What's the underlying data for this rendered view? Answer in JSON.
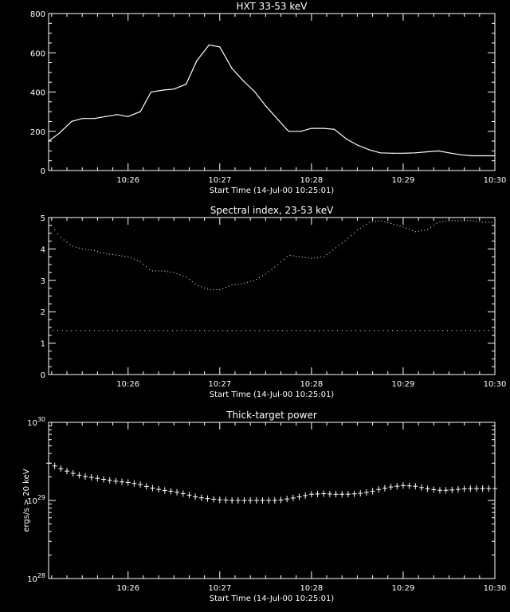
{
  "chart_data": [
    {
      "type": "line",
      "title": "HXT 33-53 keV",
      "xlabel": "Start Time (14-Jul-00 10:25:01)",
      "ylabel": "",
      "xlim": [
        "10:25:08",
        "10:30:00"
      ],
      "ylim": [
        0,
        800
      ],
      "y_ticks": [
        "0",
        "200",
        "400",
        "600",
        "800"
      ],
      "x_ticks": [
        "10:26",
        "10:27",
        "10:28",
        "10:29",
        "10:30"
      ],
      "series": [
        {
          "x": [
            "10:25:08",
            "10:25:15",
            "10:25:23",
            "10:25:30",
            "10:25:38",
            "10:25:45",
            "10:25:53",
            "10:26:00",
            "10:26:08",
            "10:26:15",
            "10:26:23",
            "10:26:30",
            "10:26:38",
            "10:26:45",
            "10:26:53",
            "10:27:00",
            "10:27:08",
            "10:27:15",
            "10:27:23",
            "10:27:30",
            "10:27:38",
            "10:27:45",
            "10:27:53",
            "10:28:00",
            "10:28:08",
            "10:28:15",
            "10:28:23",
            "10:28:30",
            "10:28:38",
            "10:28:45",
            "10:28:53",
            "10:29:00",
            "10:29:08",
            "10:29:15",
            "10:29:23",
            "10:29:30",
            "10:29:38",
            "10:29:45",
            "10:29:53",
            "10:30:00"
          ],
          "values": [
            150,
            190,
            250,
            265,
            265,
            275,
            285,
            275,
            300,
            400,
            410,
            415,
            440,
            560,
            640,
            630,
            520,
            460,
            400,
            330,
            260,
            200,
            200,
            215,
            215,
            210,
            160,
            130,
            105,
            90,
            88,
            88,
            90,
            95,
            100,
            90,
            80,
            75,
            75,
            75
          ]
        }
      ]
    },
    {
      "type": "scatter",
      "title": "Spectral index, 23-53 keV",
      "xlabel": "Start Time (14-Jul-00 10:25:01)",
      "ylabel": "",
      "xlim": [
        "10:25:08",
        "10:30:00"
      ],
      "ylim": [
        0,
        5
      ],
      "y_ticks": [
        "0",
        "1",
        "2",
        "3",
        "4",
        "5"
      ],
      "x_ticks": [
        "10:26",
        "10:27",
        "10:28",
        "10:29",
        "10:30"
      ],
      "series": [
        {
          "x": [
            "10:25:08",
            "10:25:15",
            "10:25:23",
            "10:25:30",
            "10:25:38",
            "10:25:45",
            "10:25:53",
            "10:26:00",
            "10:26:08",
            "10:26:15",
            "10:26:23",
            "10:26:30",
            "10:26:38",
            "10:26:45",
            "10:26:53",
            "10:27:00",
            "10:27:08",
            "10:27:15",
            "10:27:23",
            "10:27:30",
            "10:27:38",
            "10:27:45",
            "10:27:53",
            "10:28:00",
            "10:28:08",
            "10:28:15",
            "10:28:23",
            "10:28:30",
            "10:28:38",
            "10:28:45",
            "10:28:53",
            "10:29:00",
            "10:29:08",
            "10:29:15",
            "10:29:23",
            "10:29:30",
            "10:29:38",
            "10:29:45",
            "10:29:53",
            "10:30:00"
          ],
          "values": [
            4.9,
            4.4,
            4.1,
            4.0,
            3.95,
            3.85,
            3.8,
            3.75,
            3.6,
            3.3,
            3.3,
            3.25,
            3.1,
            2.85,
            2.7,
            2.7,
            2.85,
            2.9,
            3.0,
            3.2,
            3.5,
            3.8,
            3.75,
            3.7,
            3.75,
            4.0,
            4.3,
            4.6,
            4.85,
            4.9,
            4.8,
            4.7,
            4.55,
            4.6,
            4.85,
            4.9,
            4.9,
            4.9,
            4.85,
            4.85
          ]
        },
        {
          "x": [
            "10:25:08",
            "10:30:00"
          ],
          "values": [
            1.4,
            1.4
          ]
        }
      ]
    },
    {
      "type": "line",
      "title": "Thick-target power",
      "xlabel": "Start Time (14-Jul-00 10:25:01)",
      "ylabel": "ergs/s > 20 keV",
      "xlim": [
        "10:25:08",
        "10:30:00"
      ],
      "ylim": [
        1e+28,
        1e+30
      ],
      "y_scale": "log",
      "y_tick_base": "10",
      "y_ticks": [
        {
          "value": 1e+28,
          "exp": "28"
        },
        {
          "value": 1e+29,
          "exp": "29"
        },
        {
          "value": 1e+30,
          "exp": "30"
        }
      ],
      "x_ticks": [
        "10:26",
        "10:27",
        "10:28",
        "10:29",
        "10:30"
      ],
      "series": [
        {
          "x": [
            "10:25:08",
            "10:25:15",
            "10:25:23",
            "10:25:30",
            "10:25:38",
            "10:25:45",
            "10:25:53",
            "10:26:00",
            "10:26:08",
            "10:26:15",
            "10:26:23",
            "10:26:30",
            "10:26:38",
            "10:26:45",
            "10:26:53",
            "10:27:00",
            "10:27:08",
            "10:27:15",
            "10:27:23",
            "10:27:30",
            "10:27:38",
            "10:27:45",
            "10:27:53",
            "10:28:00",
            "10:28:08",
            "10:28:15",
            "10:28:23",
            "10:28:30",
            "10:28:38",
            "10:28:45",
            "10:28:53",
            "10:29:00",
            "10:29:08",
            "10:29:15",
            "10:29:23",
            "10:29:30",
            "10:29:38",
            "10:29:45",
            "10:29:53",
            "10:30:00"
          ],
          "values": [
            3e+29,
            2.6e+29,
            2.25e+29,
            2.05e+29,
            1.95e+29,
            1.85e+29,
            1.75e+29,
            1.7e+29,
            1.6e+29,
            1.45e+29,
            1.35e+29,
            1.3e+29,
            1.2e+29,
            1.1e+29,
            1.05e+29,
            1.02e+29,
            1e+29,
            1e+29,
            1e+29,
            1e+29,
            1e+29,
            1.05e+29,
            1.12e+29,
            1.2e+29,
            1.22e+29,
            1.2e+29,
            1.2e+29,
            1.22e+29,
            1.28e+29,
            1.4e+29,
            1.5e+29,
            1.55e+29,
            1.52e+29,
            1.42e+29,
            1.35e+29,
            1.35e+29,
            1.4e+29,
            1.42e+29,
            1.42e+29,
            1.42e+29
          ]
        }
      ]
    }
  ]
}
